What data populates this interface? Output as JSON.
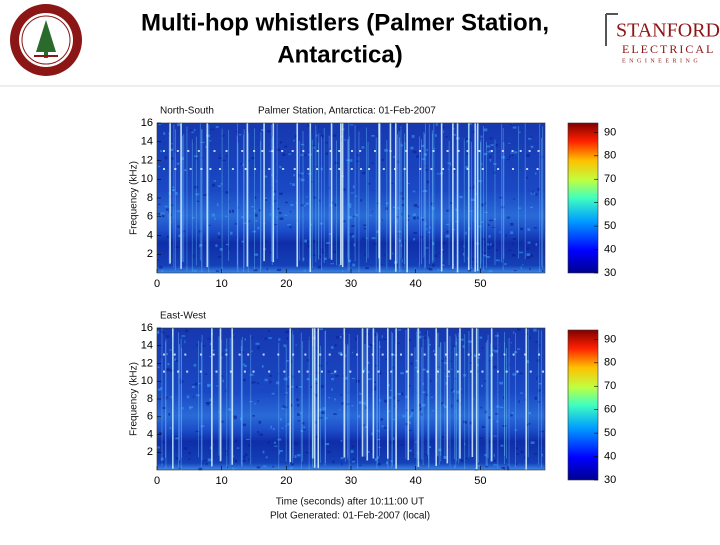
{
  "header": {
    "title_line1": "Multi-hop whistlers (Palmer Station,",
    "title_line2": "Antarctica)",
    "logo": {
      "line1": "STANFORD",
      "line2": "ELECTRICAL",
      "line3": "ENGINEERING"
    }
  },
  "panels": [
    {
      "label": "North-South",
      "title": "Palmer Station, Antarctica: 01-Feb-2007",
      "y_label": "Frequency (kHz)",
      "ylim": [
        0,
        16
      ],
      "y_ticks": [
        2,
        4,
        6,
        8,
        10,
        12,
        14,
        16
      ],
      "xlim": [
        0,
        60
      ],
      "x_ticks": [
        0,
        10,
        20,
        30,
        40,
        50
      ],
      "clim": [
        30,
        94
      ],
      "colorbar_ticks": [
        30,
        40,
        50,
        60,
        70,
        80,
        90
      ]
    },
    {
      "label": "East-West",
      "y_label": "Frequency (kHz)",
      "ylim": [
        0,
        16
      ],
      "y_ticks": [
        2,
        4,
        6,
        8,
        10,
        12,
        14,
        16
      ],
      "xlim": [
        0,
        60
      ],
      "x_ticks": [
        0,
        10,
        20,
        30,
        40,
        50
      ],
      "clim": [
        30,
        94
      ],
      "colorbar_ticks": [
        30,
        40,
        50,
        60,
        70,
        80,
        90
      ]
    }
  ],
  "x_label": "Time (seconds) after 10:11:00 UT",
  "footer": "Plot Generated: 01-Feb-2007 (local)"
}
